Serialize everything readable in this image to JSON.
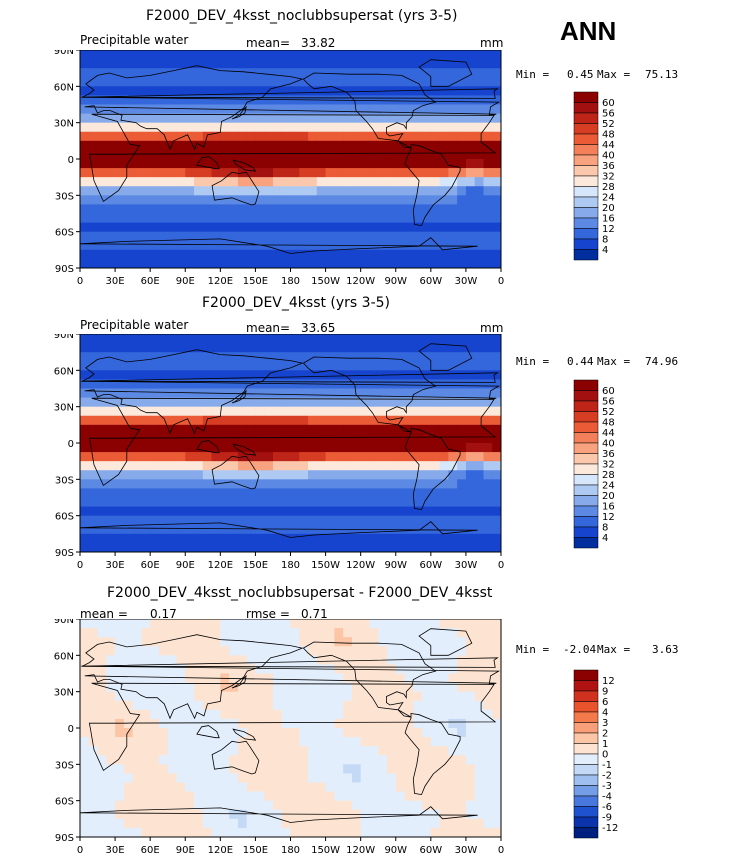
{
  "season": "ANN",
  "chart_data": [
    {
      "type": "heatmap",
      "title": "F2000_DEV_4ksst_noclubbsupersat (yrs 3-5)",
      "variable": "Precipitable water",
      "stat_label": "mean=",
      "stat_value": "33.82",
      "units": "mm",
      "min_label": "Min =",
      "min_value": "0.45",
      "max_label": "Max =",
      "max_value": "75.13",
      "x_ticks": [
        "0",
        "30E",
        "60E",
        "90E",
        "120E",
        "150E",
        "180",
        "150W",
        "120W",
        "90W",
        "60W",
        "30W",
        "0"
      ],
      "y_ticks": [
        "90N",
        "60N",
        "30N",
        "0",
        "30S",
        "60S",
        "90S"
      ],
      "xlim": [
        0,
        360
      ],
      "ylim": [
        -90,
        90
      ],
      "colorbar_levels": [
        "60",
        "56",
        "52",
        "48",
        "44",
        "40",
        "36",
        "32",
        "28",
        "24",
        "20",
        "16",
        "12",
        "8",
        "4"
      ],
      "colorbar_colors": [
        "#8b0000",
        "#a31010",
        "#be2418",
        "#d63d22",
        "#ea5b36",
        "#f3805a",
        "#f8a27f",
        "#fbc8ad",
        "#fde9dc",
        "#d7e7fb",
        "#aecaf2",
        "#86aaea",
        "#5c89e3",
        "#3466dc",
        "#1644ce",
        "#002e9e"
      ]
    },
    {
      "type": "heatmap",
      "title": "F2000_DEV_4ksst (yrs 3-5)",
      "variable": "Precipitable water",
      "stat_label": "mean=",
      "stat_value": "33.65",
      "units": "mm",
      "min_label": "Min =",
      "min_value": "0.44",
      "max_label": "Max =",
      "max_value": "74.96",
      "x_ticks": [
        "0",
        "30E",
        "60E",
        "90E",
        "120E",
        "150E",
        "180",
        "150W",
        "120W",
        "90W",
        "60W",
        "30W",
        "0"
      ],
      "y_ticks": [
        "90N",
        "60N",
        "30N",
        "0",
        "30S",
        "60S",
        "90S"
      ],
      "xlim": [
        0,
        360
      ],
      "ylim": [
        -90,
        90
      ],
      "colorbar_levels": [
        "60",
        "56",
        "52",
        "48",
        "44",
        "40",
        "36",
        "32",
        "28",
        "24",
        "20",
        "16",
        "12",
        "8",
        "4"
      ],
      "colorbar_colors": [
        "#8b0000",
        "#a31010",
        "#be2418",
        "#d63d22",
        "#ea5b36",
        "#f3805a",
        "#f8a27f",
        "#fbc8ad",
        "#fde9dc",
        "#d7e7fb",
        "#aecaf2",
        "#86aaea",
        "#5c89e3",
        "#3466dc",
        "#1644ce",
        "#002e9e"
      ]
    },
    {
      "type": "heatmap",
      "title": "F2000_DEV_4ksst_noclubbsupersat - F2000_DEV_4ksst",
      "variable": "",
      "stat_label": "mean =",
      "stat_value": "0.17",
      "stat2_label": "rmse =",
      "stat2_value": "0.71",
      "units": "",
      "min_label": "Min =",
      "min_value": "-2.04",
      "max_label": "Max =",
      "max_value": "3.63",
      "x_ticks": [
        "0",
        "30E",
        "60E",
        "90E",
        "120E",
        "150E",
        "180",
        "150W",
        "120W",
        "90W",
        "60W",
        "30W",
        "0"
      ],
      "y_ticks": [
        "90N",
        "60N",
        "30N",
        "0",
        "30S",
        "60S",
        "90S"
      ],
      "xlim": [
        0,
        360
      ],
      "ylim": [
        -90,
        90
      ],
      "colorbar_levels": [
        "12",
        "9",
        "6",
        "4",
        "3",
        "2",
        "1",
        "0",
        "-1",
        "-2",
        "-3",
        "-4",
        "-6",
        "-9",
        "-12"
      ],
      "colorbar_colors": [
        "#8b0000",
        "#b01212",
        "#d13220",
        "#e9532c",
        "#f47a4c",
        "#f9a07a",
        "#fcc5a6",
        "#fde4d2",
        "#e3eefc",
        "#c4d9f6",
        "#9ebff0",
        "#739ee7",
        "#4878dd",
        "#1f52cf",
        "#0a33ac",
        "#002080"
      ]
    }
  ]
}
